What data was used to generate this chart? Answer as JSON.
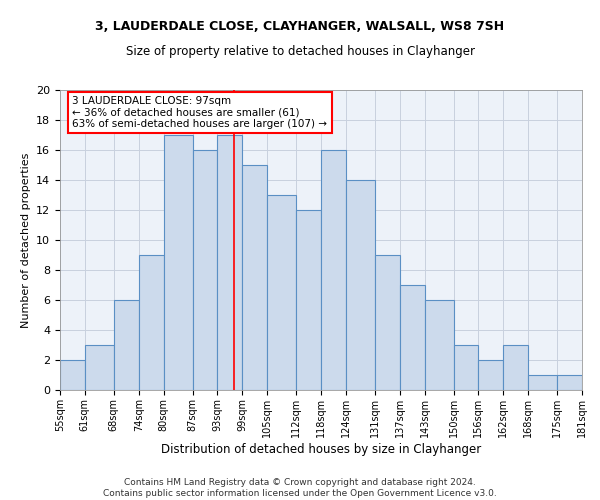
{
  "title_line1": "3, LAUDERDALE CLOSE, CLAYHANGER, WALSALL, WS8 7SH",
  "title_line2": "Size of property relative to detached houses in Clayhanger",
  "xlabel": "Distribution of detached houses by size in Clayhanger",
  "ylabel": "Number of detached properties",
  "footer_line1": "Contains HM Land Registry data © Crown copyright and database right 2024.",
  "footer_line2": "Contains public sector information licensed under the Open Government Licence v3.0.",
  "annotation_line1": "3 LAUDERDALE CLOSE: 97sqm",
  "annotation_line2": "← 36% of detached houses are smaller (61)",
  "annotation_line3": "63% of semi-detached houses are larger (107) →",
  "bin_labels": [
    "55sqm",
    "61sqm",
    "68sqm",
    "74sqm",
    "80sqm",
    "87sqm",
    "93sqm",
    "99sqm",
    "105sqm",
    "112sqm",
    "118sqm",
    "124sqm",
    "131sqm",
    "137sqm",
    "143sqm",
    "150sqm",
    "156sqm",
    "162sqm",
    "168sqm",
    "175sqm",
    "181sqm"
  ],
  "bin_edges": [
    55,
    61,
    68,
    74,
    80,
    87,
    93,
    99,
    105,
    112,
    118,
    124,
    131,
    137,
    143,
    150,
    156,
    162,
    168,
    175,
    181
  ],
  "bar_heights": [
    2,
    3,
    6,
    9,
    17,
    16,
    17,
    15,
    13,
    12,
    16,
    14,
    9,
    7,
    6,
    3,
    2,
    3,
    1,
    1
  ],
  "bar_color": "#ccdaec",
  "bar_edge_color": "#5a8fc4",
  "grid_color": "#c8d0de",
  "property_line_x": 97,
  "property_line_color": "red",
  "annotation_box_color": "white",
  "annotation_box_edge_color": "red",
  "ylim": [
    0,
    20
  ],
  "yticks": [
    0,
    2,
    4,
    6,
    8,
    10,
    12,
    14,
    16,
    18,
    20
  ],
  "bg_color": "#edf2f9"
}
